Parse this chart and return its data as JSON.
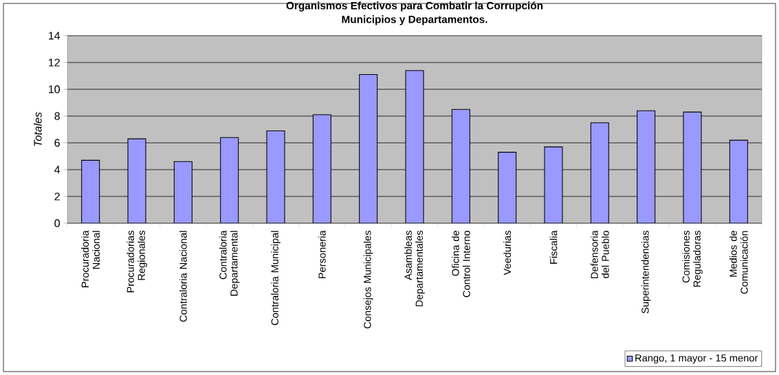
{
  "chart_data": {
    "type": "bar",
    "title": "Organismos Efectivos para Combatir la Corrupción",
    "subtitle": "Municipios y Departamentos.",
    "ylabel": "Totales",
    "categories": [
      "Procuradoria Nacional",
      "Procuradorias Regionales",
      "Contraloria Nacional",
      "Contraloria Departamental",
      "Contraloria Municipal",
      "Personeria",
      "Consejos Municipales",
      "Asambleas Departamentales",
      "Oficina de Control Interno",
      "Veedurias",
      "Fiscalia",
      "Defensoria del Pueblo",
      "Superintendencias",
      "Comisiones Reguladoras",
      "Medios de Comunicación"
    ],
    "series": [
      {
        "name": "Rango, 1 mayor - 15 menor",
        "color": "#9999ff",
        "values": [
          4.7,
          6.3,
          4.6,
          6.4,
          6.9,
          8.1,
          11.1,
          11.4,
          8.5,
          5.3,
          5.7,
          7.5,
          8.4,
          8.3,
          6.2
        ]
      }
    ],
    "ylim": [
      0,
      14
    ],
    "yticks": [
      0,
      2,
      4,
      6,
      8,
      10,
      12,
      14
    ],
    "grid": "y",
    "legend": "bottom right"
  }
}
